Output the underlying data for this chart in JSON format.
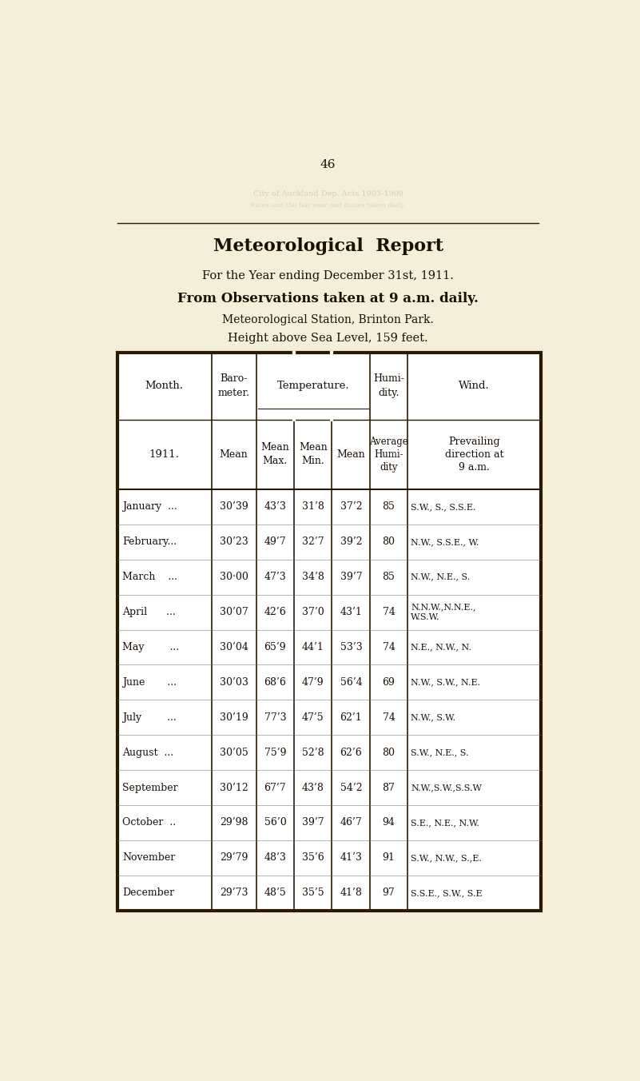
{
  "page_number": "46",
  "bg_color": "#f5eed8",
  "title": "Meteorological  Report",
  "subtitle1": "For the Year ending December 31st, 1911.",
  "subtitle2": "From Observations taken at 9 a.m. daily.",
  "subtitle3": "Meteorological Station, Brinton Park.",
  "subtitle4": "Height above Sea Level, 159 feet.",
  "months": [
    "January  ...",
    "February...",
    "March    ...",
    "April      ...",
    "May        ...",
    "June       ...",
    "July        ...",
    "August  ...",
    "September",
    "October  ..",
    "November",
    "December"
  ],
  "barometer": [
    "30’39",
    "30’23",
    "30·00",
    "30’07",
    "30’04",
    "30’03",
    "30’19",
    "30’05",
    "30’12",
    "29’98",
    "29’79",
    "29’73"
  ],
  "mean_max": [
    "43’3",
    "49’7",
    "47’3",
    "42’6",
    "65’9",
    "68’6",
    "77’3",
    "75’9",
    "67’7",
    "56’0",
    "48’3",
    "48’5"
  ],
  "mean_min": [
    "31’8",
    "32’7",
    "34’8",
    "37’0",
    "44’1",
    "47’9",
    "47’5",
    "52’8",
    "43’8",
    "39’7",
    "35’6",
    "35’5"
  ],
  "mean": [
    "37’2",
    "39’2",
    "39’7",
    "43’1",
    "53’3",
    "56’4",
    "62’1",
    "62’6",
    "54’2",
    "46’7",
    "41’3",
    "41’8"
  ],
  "humidity": [
    "85",
    "80",
    "85",
    "74",
    "74",
    "69",
    "74",
    "80",
    "87",
    "94",
    "91",
    "97"
  ],
  "wind": [
    "S.W., S., S.S.E.",
    "N.W., S.S.E., W.",
    "N.W., N.E., S.",
    "N.N.W.,N.N.E.,\nW.S.W.",
    "N.E., N.W., N.",
    "N.W., S.W., N.E.",
    "N.W., S.W.",
    "S.W., N.E., S.",
    "N.W.,S.W.,S.S.W",
    "S.E., N.E., N.W.",
    "S.W., N.W., S.,E.",
    "S.S.E., S.W., S.E"
  ],
  "text_color": "#1a1008",
  "border_color": "#2a1a05",
  "inner_line_color": "#666666"
}
